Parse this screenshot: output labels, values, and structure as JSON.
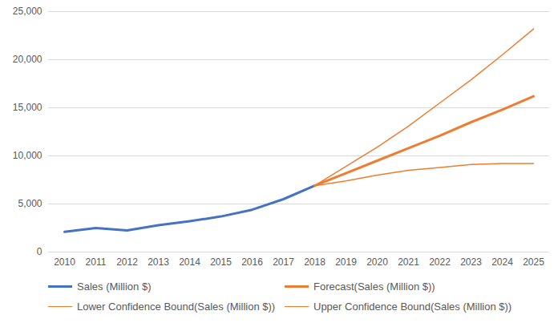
{
  "chart_data": {
    "type": "line",
    "categories": [
      "2010",
      "2011",
      "2012",
      "2013",
      "2014",
      "2015",
      "2016",
      "2017",
      "2018",
      "2019",
      "2020",
      "2021",
      "2022",
      "2023",
      "2024",
      "2025"
    ],
    "series": [
      {
        "name": "Sales (Million $)",
        "color": "#4472c4",
        "values": [
          2100,
          2500,
          2250,
          2800,
          3200,
          3700,
          4400,
          5500,
          6900,
          null,
          null,
          null,
          null,
          null,
          null,
          null
        ]
      },
      {
        "name": "Forecast(Sales (Million $))",
        "color": "#ed7d31",
        "values": [
          null,
          null,
          null,
          null,
          null,
          null,
          null,
          null,
          6900,
          8200,
          9500,
          10800,
          12100,
          13500,
          14800,
          16200
        ]
      },
      {
        "name": "Lower Confidence Bound(Sales (Million $))",
        "color": "#ed7d31",
        "values": [
          null,
          null,
          null,
          null,
          null,
          null,
          null,
          null,
          6900,
          7400,
          8000,
          8500,
          8800,
          9100,
          9200,
          9200
        ]
      },
      {
        "name": "Upper Confidence Bound(Sales (Million $))",
        "color": "#ed7d31",
        "values": [
          null,
          null,
          null,
          null,
          null,
          null,
          null,
          null,
          6900,
          8900,
          10900,
          13100,
          15500,
          17900,
          20500,
          23200
        ]
      }
    ],
    "ylim": [
      0,
      25000
    ],
    "yticks": [
      0,
      5000,
      10000,
      15000,
      20000,
      25000
    ],
    "grid": true,
    "legend": "bottom"
  }
}
